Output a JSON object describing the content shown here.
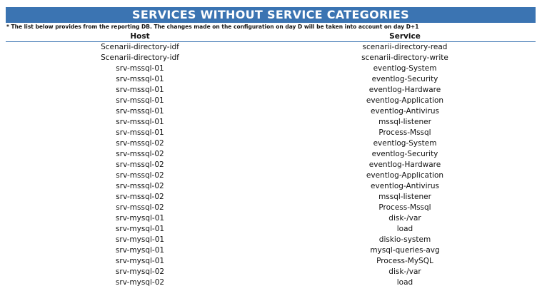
{
  "header": {
    "title": "SERVICES WITHOUT SERVICE CATEGORIES",
    "note": "* The list below provides from the reporting DB. The changes made on the configuration on day D will be taken into account on day D+1"
  },
  "table": {
    "columns": [
      "Host",
      "Service"
    ],
    "rows": [
      [
        "Scenarii-directory-idf",
        "scenarii-directory-read"
      ],
      [
        "Scenarii-directory-idf",
        "scenarii-directory-write"
      ],
      [
        "srv-mssql-01",
        "eventlog-System"
      ],
      [
        "srv-mssql-01",
        "eventlog-Security"
      ],
      [
        "srv-mssql-01",
        "eventlog-Hardware"
      ],
      [
        "srv-mssql-01",
        "eventlog-Application"
      ],
      [
        "srv-mssql-01",
        "eventlog-Antivirus"
      ],
      [
        "srv-mssql-01",
        "mssql-listener"
      ],
      [
        "srv-mssql-01",
        "Process-Mssql"
      ],
      [
        "srv-mssql-02",
        "eventlog-System"
      ],
      [
        "srv-mssql-02",
        "eventlog-Security"
      ],
      [
        "srv-mssql-02",
        "eventlog-Hardware"
      ],
      [
        "srv-mssql-02",
        "eventlog-Application"
      ],
      [
        "srv-mssql-02",
        "eventlog-Antivirus"
      ],
      [
        "srv-mssql-02",
        "mssql-listener"
      ],
      [
        "srv-mssql-02",
        "Process-Mssql"
      ],
      [
        "srv-mysql-01",
        "disk-/var"
      ],
      [
        "srv-mysql-01",
        "load"
      ],
      [
        "srv-mysql-01",
        "diskio-system"
      ],
      [
        "srv-mysql-01",
        "mysql-queries-avg"
      ],
      [
        "srv-mysql-01",
        "Process-MySQL"
      ],
      [
        "srv-mysql-02",
        "disk-/var"
      ],
      [
        "srv-mysql-02",
        "load"
      ]
    ]
  }
}
